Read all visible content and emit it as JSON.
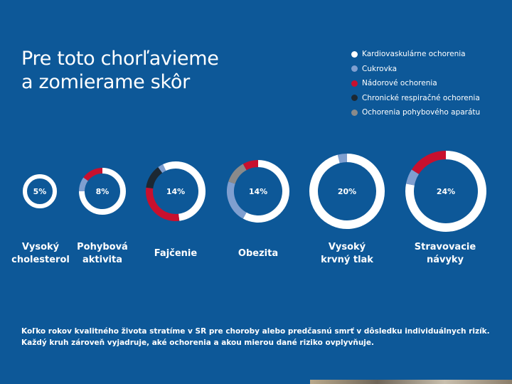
{
  "title": {
    "line1": "Pre toto chorľavieme",
    "line2": "a zomierame skôr"
  },
  "legend": [
    {
      "label": "Kardiovaskulárne ochorenia",
      "color": "#ffffff"
    },
    {
      "label": "Cukrovka",
      "color": "#7f9fd0"
    },
    {
      "label": "Nádorové ochorenia",
      "color": "#c8102e"
    },
    {
      "label": "Chronické respiračné ochorenia",
      "color": "#1c2833"
    },
    {
      "label": "Ochorenia pohybového aparátu",
      "color": "#8a8a8a"
    }
  ],
  "chart_data": {
    "type": "donut",
    "unit": "%",
    "categories": [
      "Vysoký cholesterol",
      "Pohybová aktivita",
      "Fajčenie",
      "Obezita",
      "Vysoký krvný tlak",
      "Stravovacie návyky"
    ],
    "values": [
      5,
      8,
      14,
      14,
      20,
      24
    ],
    "value_labels": [
      "5%",
      "8%",
      "14%",
      "14%",
      "20%",
      "24%"
    ],
    "segments": [
      [
        {
          "disease": "Kardiovaskulárne ochorenia",
          "share": 1.0
        }
      ],
      [
        {
          "disease": "Kardiovaskulárne ochorenia",
          "share": 0.75
        },
        {
          "disease": "Cukrovka",
          "share": 0.1
        },
        {
          "disease": "Nádorové ochorenia",
          "share": 0.15
        }
      ],
      [
        {
          "disease": "Kardiovaskulárne ochorenia",
          "share": 0.48
        },
        {
          "disease": "Nádorové ochorenia",
          "share": 0.29
        },
        {
          "disease": "Chronické respiračné ochorenia",
          "share": 0.13
        },
        {
          "disease": "Cukrovka",
          "share": 0.03
        },
        {
          "disease": "Kardiovaskulárne ochorenia",
          "share": 0.07
        }
      ],
      [
        {
          "disease": "Kardiovaskulárne ochorenia",
          "share": 0.58
        },
        {
          "disease": "Cukrovka",
          "share": 0.22
        },
        {
          "disease": "Ochorenia pohybového aparátu",
          "share": 0.12
        },
        {
          "disease": "Nádorové ochorenia",
          "share": 0.08
        }
      ],
      [
        {
          "disease": "Kardiovaskulárne ochorenia",
          "share": 0.96
        },
        {
          "disease": "Cukrovka",
          "share": 0.04
        }
      ],
      [
        {
          "disease": "Kardiovaskulárne ochorenia",
          "share": 0.78
        },
        {
          "disease": "Cukrovka",
          "share": 0.06
        },
        {
          "disease": "Nádorové ochorenia",
          "share": 0.16
        }
      ]
    ],
    "captions": [
      [
        "Vysoký",
        "cholesterol"
      ],
      [
        "Pohybová",
        "aktivita"
      ],
      [
        "Fajčenie"
      ],
      [
        "Obezita"
      ],
      [
        "Vysoký",
        "krvný tlak"
      ],
      [
        "Stravovacie",
        "návyky"
      ]
    ]
  },
  "note": {
    "line1": "Koľko rokov kvalitného života stratíme v SR pre choroby alebo predčasnú smrť v dôsledku individuálnych rizík.",
    "line2": "Každý kruh zároveň vyjadruje, aké ochorenia a akou mierou dané riziko ovplyvňuje."
  }
}
